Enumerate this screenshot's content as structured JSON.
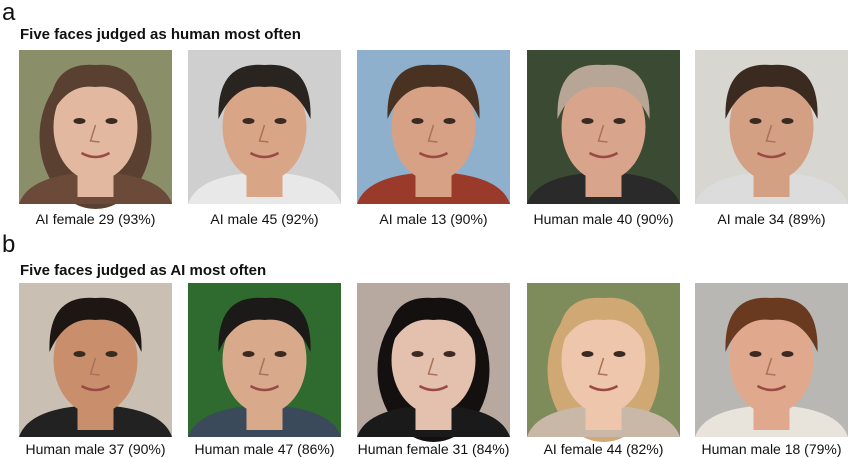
{
  "panels": [
    {
      "letter": "a",
      "title": "Five faces judged as human most often",
      "faces": [
        "AI female 29 (93%)",
        "AI male 45 (92%)",
        "AI male 13 (90%)",
        "Human male 40 (90%)",
        "AI male 34 (89%)"
      ]
    },
    {
      "letter": "b",
      "title": "Five faces judged as AI most often",
      "faces": [
        "Human male 37 (90%)",
        "Human male 47 (86%)",
        "Human female 31 (84%)",
        "AI female 44 (82%)",
        "Human male 18 (79%)"
      ]
    }
  ]
}
